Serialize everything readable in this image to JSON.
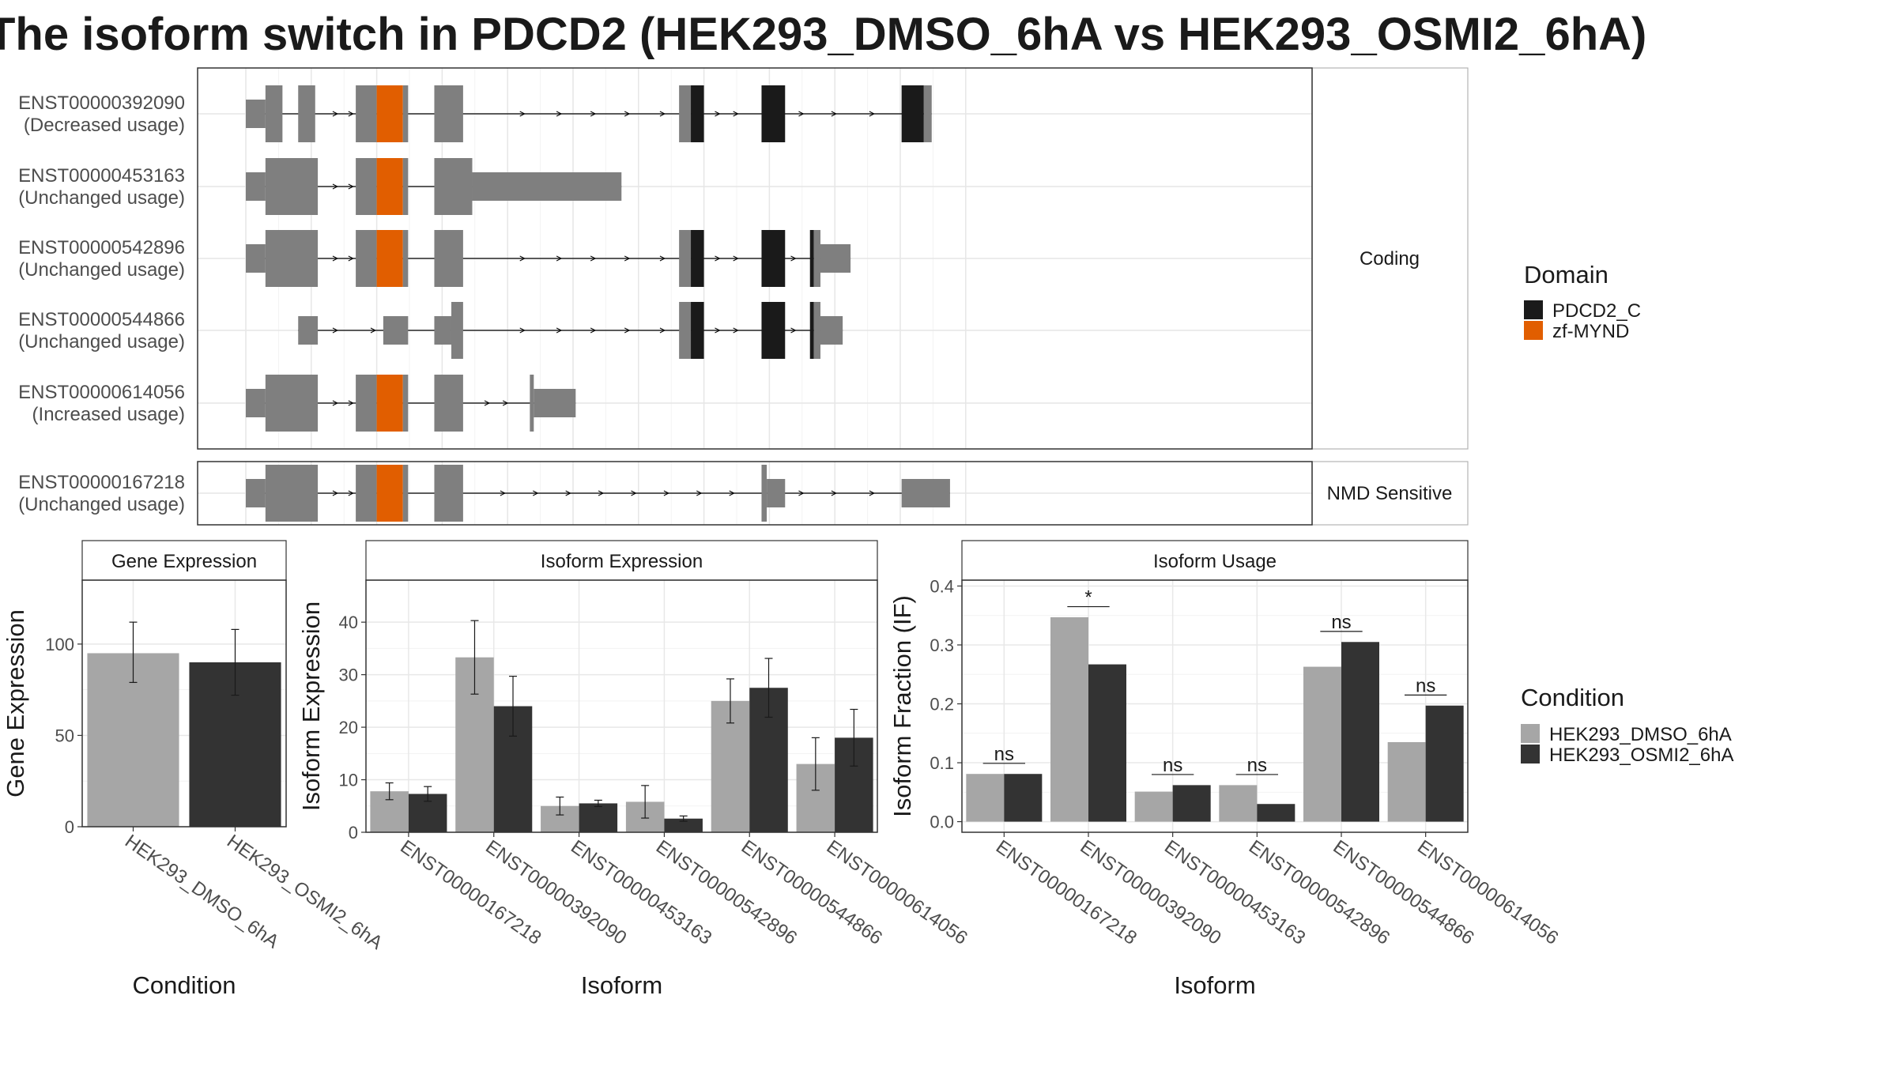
{
  "title": "The isoform switch in PDCD2 (HEK293_DMSO_6hA vs HEK293_OSMI2_6hA)",
  "structure": {
    "transcripts": [
      {
        "id": "ENST00000392090",
        "usage": "(Decreased usage)",
        "panel": "Coding",
        "exons": [
          [
            0,
            15,
            "nc"
          ],
          [
            15,
            28,
            "c"
          ],
          [
            40,
            53,
            "c"
          ],
          [
            84,
            100,
            "c"
          ],
          [
            100,
            120,
            "zf"
          ],
          [
            120,
            124,
            "c"
          ],
          [
            144,
            166,
            "c"
          ],
          [
            331,
            340,
            "c"
          ],
          [
            340,
            350,
            "pd"
          ],
          [
            394,
            412,
            "pd"
          ],
          [
            501,
            518,
            "pd"
          ],
          [
            518,
            524,
            "c"
          ]
        ],
        "span": [
          0,
          524
        ],
        "arrows": [
          70,
          82,
          213,
          241,
          267,
          293,
          320,
          362,
          376,
          426,
          451,
          480
        ]
      },
      {
        "id": "ENST00000453163",
        "usage": "(Unchanged usage)",
        "panel": "Coding",
        "exons": [
          [
            0,
            15,
            "nc"
          ],
          [
            15,
            55,
            "c"
          ],
          [
            84,
            100,
            "c"
          ],
          [
            100,
            120,
            "zf"
          ],
          [
            120,
            124,
            "c"
          ],
          [
            144,
            173,
            "c"
          ],
          [
            173,
            287,
            "nc"
          ]
        ],
        "span": [
          0,
          287
        ],
        "arrows": [
          70,
          82
        ]
      },
      {
        "id": "ENST00000542896",
        "usage": "(Unchanged usage)",
        "panel": "Coding",
        "exons": [
          [
            0,
            15,
            "nc"
          ],
          [
            15,
            55,
            "c"
          ],
          [
            84,
            100,
            "c"
          ],
          [
            100,
            120,
            "zf"
          ],
          [
            120,
            124,
            "c"
          ],
          [
            144,
            166,
            "c"
          ],
          [
            331,
            340,
            "c"
          ],
          [
            340,
            350,
            "pd"
          ],
          [
            394,
            412,
            "pd"
          ],
          [
            431,
            434,
            "pd"
          ],
          [
            434,
            439,
            "c"
          ],
          [
            439,
            462,
            "nc"
          ]
        ],
        "span": [
          0,
          462
        ],
        "arrows": [
          70,
          82,
          213,
          241,
          267,
          293,
          320,
          362,
          376,
          420
        ]
      },
      {
        "id": "ENST00000544866",
        "usage": "(Unchanged usage)",
        "panel": "Coding",
        "exons": [
          [
            40,
            55,
            "nc"
          ],
          [
            105,
            124,
            "nc"
          ],
          [
            144,
            157,
            "nc"
          ],
          [
            157,
            166,
            "c"
          ],
          [
            331,
            340,
            "c"
          ],
          [
            340,
            350,
            "pd"
          ],
          [
            394,
            412,
            "pd"
          ],
          [
            431,
            434,
            "pd"
          ],
          [
            434,
            439,
            "c"
          ],
          [
            439,
            456,
            "nc"
          ]
        ],
        "span": [
          40,
          456
        ],
        "arrows": [
          70,
          99,
          213,
          241,
          267,
          293,
          320,
          362,
          376,
          420
        ]
      },
      {
        "id": "ENST00000614056",
        "usage": "(Increased usage)",
        "panel": "Coding",
        "exons": [
          [
            0,
            15,
            "nc"
          ],
          [
            15,
            55,
            "c"
          ],
          [
            84,
            100,
            "c"
          ],
          [
            100,
            120,
            "zf"
          ],
          [
            120,
            124,
            "c"
          ],
          [
            144,
            166,
            "c"
          ],
          [
            217,
            220,
            "c"
          ],
          [
            220,
            252,
            "nc"
          ]
        ],
        "span": [
          0,
          252
        ],
        "arrows": [
          70,
          82,
          186,
          200
        ]
      },
      {
        "id": "ENST00000167218",
        "usage": "(Unchanged usage)",
        "panel": "NMD Sensitive",
        "exons": [
          [
            0,
            15,
            "nc"
          ],
          [
            15,
            55,
            "c"
          ],
          [
            84,
            100,
            "c"
          ],
          [
            100,
            120,
            "zf"
          ],
          [
            120,
            124,
            "c"
          ],
          [
            144,
            166,
            "c"
          ],
          [
            394,
            398,
            "c"
          ],
          [
            398,
            412,
            "nc"
          ],
          [
            501,
            538,
            "nc"
          ]
        ],
        "span": [
          0,
          538
        ],
        "arrows": [
          70,
          82,
          198,
          223,
          248,
          273,
          298,
          323,
          348,
          373,
          426,
          451,
          480
        ]
      }
    ],
    "panel_labels": [
      "Coding",
      "NMD Sensitive"
    ]
  },
  "legends": {
    "domain": {
      "title": "Domain",
      "items": [
        {
          "label": "PDCD2_C",
          "color": "#1a1a1a"
        },
        {
          "label": "zf-MYND",
          "color": "#e15e00"
        }
      ]
    },
    "condition": {
      "title": "Condition",
      "items": [
        {
          "label": "HEK293_DMSO_6hA",
          "color": "#a6a6a6"
        },
        {
          "label": "HEK293_OSMI2_6hA",
          "color": "#333333"
        }
      ]
    }
  },
  "colors": {
    "coding": "#7f7f7f",
    "noncoding": "#7f7f7f",
    "domain_pdcd2": "#1a1a1a",
    "domain_zf": "#e15e00",
    "dmso": "#a6a6a6",
    "osmi2": "#333333"
  },
  "chart_data": [
    {
      "type": "bar",
      "title": "Gene Expression",
      "xlabel": "Condition",
      "ylabel": "Gene Expression",
      "categories": [
        "HEK293_DMSO_6hA",
        "HEK293_OSMI2_6hA"
      ],
      "ylim": [
        0,
        135
      ],
      "yticks": [
        0,
        50,
        100
      ],
      "series": [
        {
          "values": [
            95,
            90
          ],
          "err_low": [
            79,
            72
          ],
          "err_high": [
            112,
            108
          ],
          "colors": [
            "#a6a6a6",
            "#333333"
          ]
        }
      ]
    },
    {
      "type": "bar",
      "title": "Isoform Expression",
      "xlabel": "Isoform",
      "ylabel": "Isoform Expression",
      "categories": [
        "ENST00000167218",
        "ENST00000392090",
        "ENST00000453163",
        "ENST00000542896",
        "ENST00000544866",
        "ENST00000614056"
      ],
      "ylim": [
        0,
        48
      ],
      "yticks": [
        0,
        10,
        20,
        30,
        40
      ],
      "series": [
        {
          "name": "HEK293_DMSO_6hA",
          "values": [
            7.8,
            33.3,
            5.0,
            5.8,
            25.0,
            13.0
          ],
          "err_low": [
            6.2,
            26.3,
            3.3,
            2.7,
            20.8,
            8.0
          ],
          "err_high": [
            9.4,
            40.3,
            6.7,
            8.9,
            29.2,
            18.0
          ]
        },
        {
          "name": "HEK293_OSMI2_6hA",
          "values": [
            7.3,
            24.0,
            5.5,
            2.6,
            27.5,
            18.0
          ],
          "err_low": [
            5.9,
            18.3,
            4.9,
            2.1,
            21.9,
            12.6
          ],
          "err_high": [
            8.7,
            29.7,
            6.1,
            3.1,
            33.1,
            23.4
          ]
        }
      ]
    },
    {
      "type": "bar",
      "title": "Isoform Usage",
      "xlabel": "Isoform",
      "ylabel": "Isoform Fraction (IF)",
      "categories": [
        "ENST00000167218",
        "ENST00000392090",
        "ENST00000453163",
        "ENST00000542896",
        "ENST00000544866",
        "ENST00000614056"
      ],
      "ylim": [
        -0.018,
        0.41
      ],
      "yticks": [
        0.0,
        0.1,
        0.2,
        0.3,
        0.4
      ],
      "series": [
        {
          "name": "HEK293_DMSO_6hA",
          "values": [
            0.081,
            0.347,
            0.051,
            0.062,
            0.263,
            0.135
          ]
        },
        {
          "name": "HEK293_OSMI2_6hA",
          "values": [
            0.081,
            0.267,
            0.062,
            0.03,
            0.305,
            0.197
          ]
        }
      ],
      "annotations": [
        {
          "category": "ENST00000167218",
          "label": "ns",
          "y": 0.099
        },
        {
          "category": "ENST00000392090",
          "label": "*",
          "y": 0.365
        },
        {
          "category": "ENST00000453163",
          "label": "ns",
          "y": 0.08
        },
        {
          "category": "ENST00000542896",
          "label": "ns",
          "y": 0.08
        },
        {
          "category": "ENST00000544866",
          "label": "ns",
          "y": 0.323
        },
        {
          "category": "ENST00000614056",
          "label": "ns",
          "y": 0.215
        }
      ]
    }
  ]
}
